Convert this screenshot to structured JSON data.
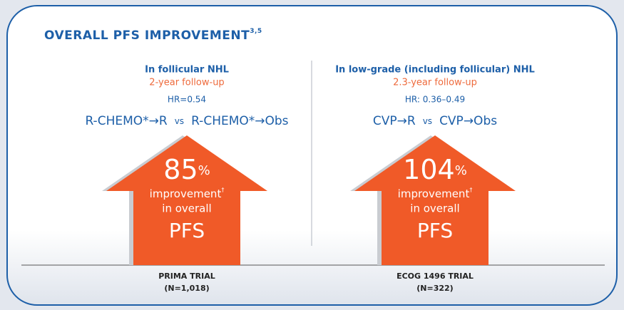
{
  "header": {
    "title": "OVERALL PFS IMPROVEMENT",
    "title_ref": "3,5"
  },
  "panels": [
    {
      "heading": "In follicular NHL",
      "follow_up": "2-year follow-up",
      "hr": "HR=0.54",
      "arm_a": "R-CHEMO*→R",
      "versus": "vs",
      "arm_b": "R-CHEMO*→Obs",
      "improvement": {
        "number": 85,
        "unit": "%",
        "line1": "improvement",
        "line1_ref": "†",
        "line2": "in overall",
        "line3": "PFS"
      },
      "trial": "PRIMA TRIAL",
      "n": "(N=1,018)"
    },
    {
      "heading": "In low-grade (including follicular) NHL",
      "follow_up": "2.3-year follow-up",
      "hr": "HR: 0.36–0.49",
      "arm_a": "CVP→R",
      "versus": "vs",
      "arm_b": "CVP→Obs",
      "improvement": {
        "number": 104,
        "unit": "%",
        "line1": "improvement",
        "line1_ref": "†",
        "line2": "in overall",
        "line3": "PFS"
      },
      "trial": "ECOG 1496 TRIAL",
      "n": "(N=322)"
    }
  ]
}
